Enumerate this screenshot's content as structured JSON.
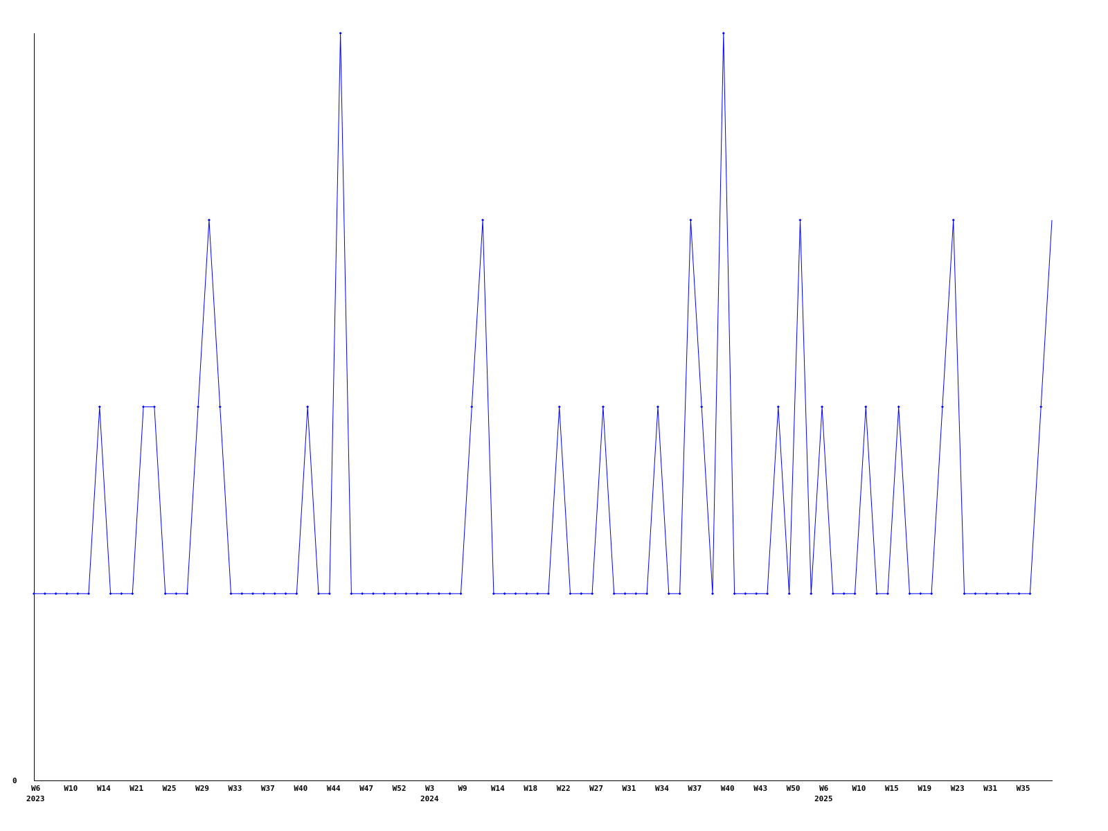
{
  "chart_data": {
    "type": "line",
    "title": "",
    "xlabel": "",
    "ylabel": "",
    "ylim": [
      0,
      4
    ],
    "y_tick_labels": [
      "0"
    ],
    "grid": false,
    "line_color": "#0000ff",
    "axis_color": "#000000",
    "x_tick_labels": [
      "W6",
      "W10",
      "W14",
      "W21",
      "W25",
      "W29",
      "W33",
      "W37",
      "W40",
      "W44",
      "W47",
      "W52",
      "W3",
      "W9",
      "W14",
      "W18",
      "W22",
      "W27",
      "W31",
      "W34",
      "W37",
      "W40",
      "W43",
      "W50",
      "W6",
      "W10",
      "W15",
      "W19",
      "W23",
      "W31",
      "W35"
    ],
    "year_labels": [
      {
        "label": "2023",
        "at_tick": 0
      },
      {
        "label": "2024",
        "at_tick": 12
      },
      {
        "label": "2025",
        "at_tick": 24
      }
    ],
    "values": [
      1,
      1,
      1,
      1,
      1,
      1,
      2,
      1,
      1,
      1,
      2,
      2,
      1,
      1,
      1,
      2,
      3,
      2,
      1,
      1,
      1,
      1,
      1,
      1,
      1,
      2,
      1,
      1,
      4,
      1,
      1,
      1,
      1,
      1,
      1,
      1,
      1,
      1,
      1,
      1,
      2,
      3,
      1,
      1,
      1,
      1,
      1,
      1,
      2,
      1,
      1,
      1,
      2,
      1,
      1,
      1,
      1,
      2,
      1,
      1,
      3,
      2,
      1,
      4,
      1,
      1,
      1,
      1,
      2,
      1,
      3,
      1,
      2,
      1,
      1,
      1,
      2,
      1,
      1,
      2,
      1,
      1,
      1,
      2,
      3,
      1,
      1,
      1,
      1,
      1,
      1,
      1,
      2,
      3
    ]
  }
}
